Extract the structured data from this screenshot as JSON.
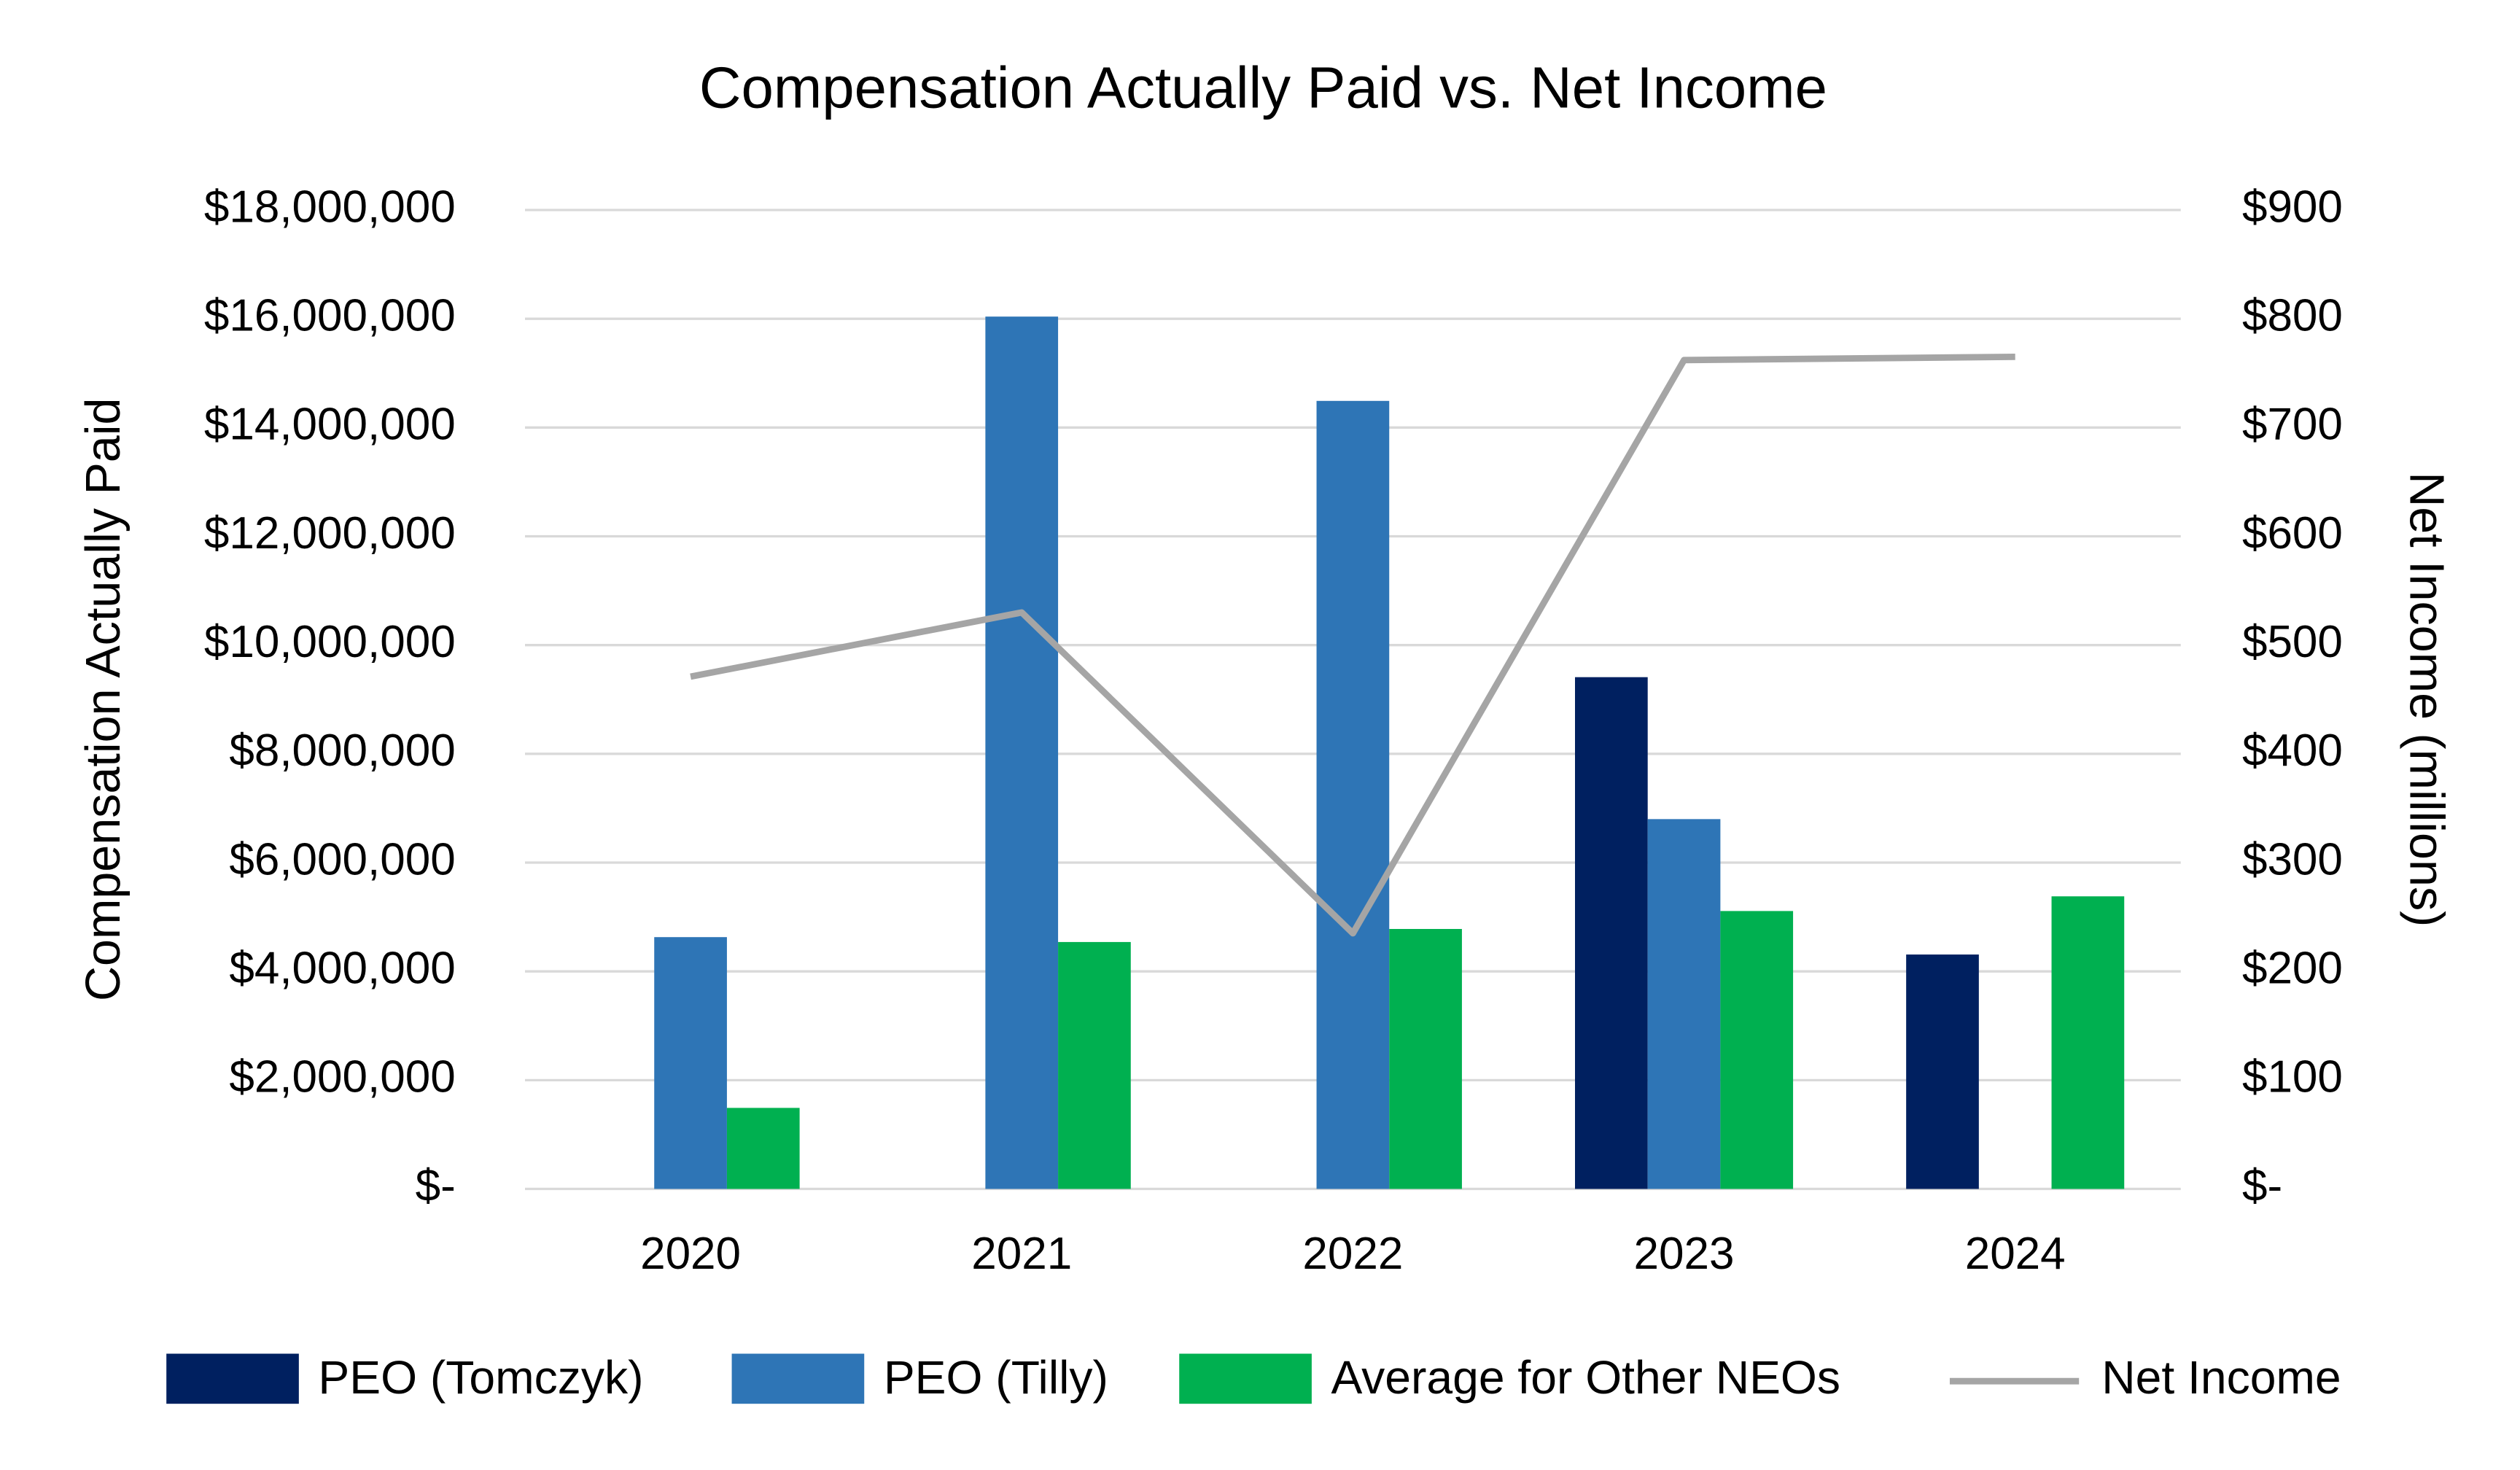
{
  "chart_data": {
    "type": "bar",
    "title": "Compensation Actually Paid vs. Net Income",
    "y_label": "Compensation Actually Paid",
    "y2_label": "Net Income (millions)",
    "categories": [
      "2020",
      "2021",
      "2022",
      "2023",
      "2024"
    ],
    "series": [
      {
        "name": "PEO (Tomczyk)",
        "color": "#002060",
        "values": [
          null,
          null,
          null,
          9410000,
          4310000
        ]
      },
      {
        "name": "PEO (Tilly)",
        "color": "#2e75b6",
        "values": [
          4630000,
          16040000,
          14490000,
          6800000,
          null
        ]
      },
      {
        "name": "Average for Other NEOs",
        "color": "#00b050",
        "values": [
          1490000,
          4540000,
          4780000,
          5110000,
          5380000
        ]
      },
      {
        "name": "Net Income",
        "color": "#a5a5a5",
        "type": "line",
        "axis": "y2",
        "values": [
          471,
          530,
          235,
          762,
          765
        ]
      }
    ],
    "ylim": [
      0,
      18000000
    ],
    "yticks": [
      {
        "value": 0,
        "label": "$-"
      },
      {
        "value": 2000000,
        "label": "$2,000,000"
      },
      {
        "value": 4000000,
        "label": "$4,000,000"
      },
      {
        "value": 6000000,
        "label": "$6,000,000"
      },
      {
        "value": 8000000,
        "label": "$8,000,000"
      },
      {
        "value": 10000000,
        "label": "$10,000,000"
      },
      {
        "value": 12000000,
        "label": "$12,000,000"
      },
      {
        "value": 14000000,
        "label": "$14,000,000"
      },
      {
        "value": 16000000,
        "label": "$16,000,000"
      },
      {
        "value": 18000000,
        "label": "$18,000,000"
      }
    ],
    "y2lim": [
      0,
      900
    ],
    "y2ticks": [
      {
        "value": 0,
        "label": "$-"
      },
      {
        "value": 100,
        "label": "$100"
      },
      {
        "value": 200,
        "label": "$200"
      },
      {
        "value": 300,
        "label": "$300"
      },
      {
        "value": 400,
        "label": "$400"
      },
      {
        "value": 500,
        "label": "$500"
      },
      {
        "value": 600,
        "label": "$600"
      },
      {
        "value": 700,
        "label": "$700"
      },
      {
        "value": 800,
        "label": "$800"
      },
      {
        "value": 900,
        "label": "$900"
      }
    ],
    "grid": true,
    "legend": "bottom"
  }
}
